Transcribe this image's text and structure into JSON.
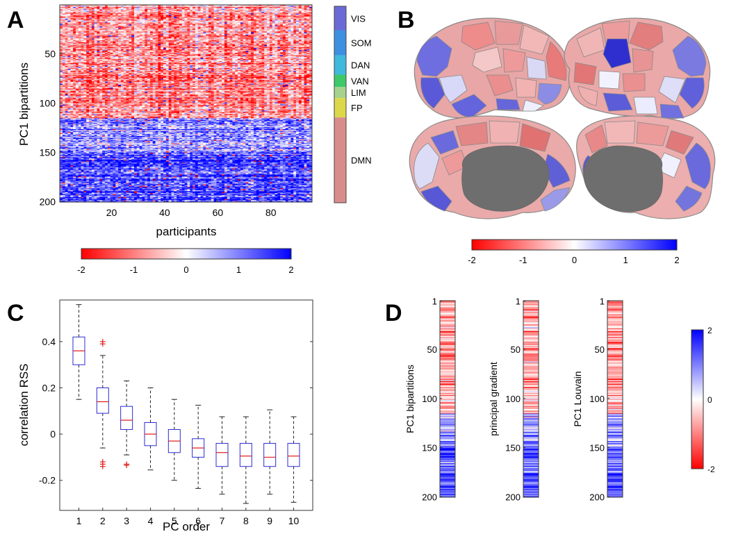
{
  "panels": {
    "A": {
      "letter": "A",
      "xlabel": "participants",
      "ylabel": "PC1 bipartitions",
      "x_ticks": [
        "20",
        "40",
        "60",
        "80"
      ],
      "y_ticks": [
        "50",
        "100",
        "150",
        "200"
      ],
      "networks": [
        "VIS",
        "SOM",
        "DAN",
        "VAN",
        "LIM",
        "FP",
        "DMN"
      ],
      "network_colors": [
        "#6a6ad6",
        "#3d8fe0",
        "#3fb9dc",
        "#3ec86a",
        "#a6d28e",
        "#dcd84a",
        "#d98c8c"
      ],
      "colorbar_ticks": [
        "-2",
        "-1",
        "0",
        "1",
        "2"
      ]
    },
    "B": {
      "letter": "B",
      "colorbar_ticks": [
        "-2",
        "-1",
        "0",
        "1",
        "2"
      ]
    },
    "C": {
      "letter": "C",
      "xlabel": "PC order",
      "ylabel": "correlation RSS",
      "x_ticks": [
        "1",
        "2",
        "3",
        "4",
        "5",
        "6",
        "7",
        "8",
        "9",
        "10"
      ],
      "y_ticks": [
        "-0.2",
        "0",
        "0.2",
        "0.4"
      ]
    },
    "D": {
      "letter": "D",
      "strips": [
        {
          "ylabel": "PC1 bipartitions"
        },
        {
          "ylabel": "principal gradient"
        },
        {
          "ylabel": "PC1 Louvain"
        }
      ],
      "y_ticks": [
        "1",
        "50",
        "100",
        "150",
        "200"
      ],
      "colorbar_ticks": [
        "2",
        "0",
        "-2"
      ]
    }
  },
  "chart_data": [
    {
      "type": "heatmap",
      "panel": "A",
      "xlabel": "participants",
      "ylabel": "PC1 bipartitions",
      "xlim": [
        1,
        95
      ],
      "ylim": [
        1,
        200
      ],
      "clim": [
        -2,
        2
      ],
      "colormap": [
        "#ff0000",
        "#ffffff",
        "#0000ff"
      ],
      "row_value_profile": [
        {
          "rows": [
            1,
            115
          ],
          "mean": -0.9
        },
        {
          "rows": [
            116,
            150
          ],
          "mean": 0.9
        },
        {
          "rows": [
            151,
            200
          ],
          "mean": 1.5
        }
      ]
    },
    {
      "type": "box",
      "panel": "C",
      "xlabel": "PC order",
      "ylabel": "correlation RSS",
      "ylim": [
        -0.33,
        0.58
      ],
      "categories": [
        1,
        2,
        3,
        4,
        5,
        6,
        7,
        8,
        9,
        10
      ],
      "boxes": [
        {
          "q1": 0.3,
          "median": 0.36,
          "q3": 0.42,
          "whisker_low": 0.15,
          "whisker_high": 0.56,
          "outliers": []
        },
        {
          "q1": 0.09,
          "median": 0.14,
          "q3": 0.2,
          "whisker_low": -0.06,
          "whisker_high": 0.34,
          "outliers": [
            0.4,
            0.39,
            -0.12,
            -0.13,
            -0.14
          ]
        },
        {
          "q1": 0.02,
          "median": 0.06,
          "q3": 0.12,
          "whisker_low": -0.09,
          "whisker_high": 0.23,
          "outliers": [
            -0.13,
            -0.135
          ]
        },
        {
          "q1": -0.05,
          "median": 0.0,
          "q3": 0.05,
          "whisker_low": -0.155,
          "whisker_high": 0.2,
          "outliers": []
        },
        {
          "q1": -0.08,
          "median": -0.03,
          "q3": 0.02,
          "whisker_low": -0.2,
          "whisker_high": 0.15,
          "outliers": []
        },
        {
          "q1": -0.1,
          "median": -0.06,
          "q3": -0.02,
          "whisker_low": -0.235,
          "whisker_high": 0.125,
          "outliers": []
        },
        {
          "q1": -0.14,
          "median": -0.08,
          "q3": -0.04,
          "whisker_low": -0.26,
          "whisker_high": 0.075,
          "outliers": []
        },
        {
          "q1": -0.14,
          "median": -0.095,
          "q3": -0.04,
          "whisker_low": -0.3,
          "whisker_high": 0.075,
          "outliers": []
        },
        {
          "q1": -0.14,
          "median": -0.1,
          "q3": -0.04,
          "whisker_low": -0.26,
          "whisker_high": 0.105,
          "outliers": []
        },
        {
          "q1": -0.14,
          "median": -0.095,
          "q3": -0.04,
          "whisker_low": -0.295,
          "whisker_high": 0.075,
          "outliers": []
        }
      ],
      "box_color": "#2b2bd6",
      "median_color": "#e02020",
      "outlier_color": "#e02020"
    },
    {
      "type": "heatmap",
      "panel": "D",
      "ylim": [
        1,
        200
      ],
      "clim": [
        -2,
        2
      ],
      "strips": [
        "PC1 bipartitions",
        "principal gradient",
        "PC1 Louvain"
      ],
      "row_value_profile": [
        {
          "rows": [
            1,
            115
          ],
          "mean": -0.7
        },
        {
          "rows": [
            116,
            150
          ],
          "mean": 0.8
        },
        {
          "rows": [
            151,
            200
          ],
          "mean": 1.2
        }
      ]
    }
  ]
}
